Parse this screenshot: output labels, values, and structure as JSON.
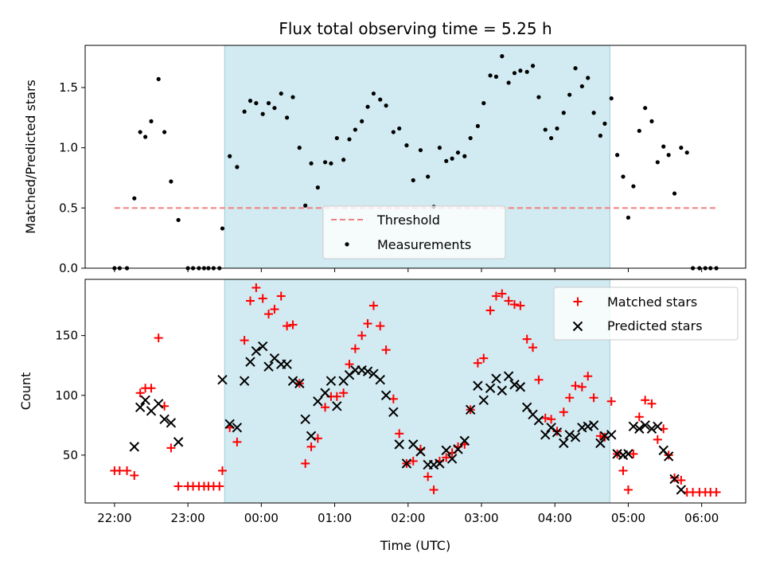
{
  "chart_data": {
    "type": "scatter",
    "title": "Flux total observing time = 5.25 h",
    "xlabel": "Time (UTC)",
    "x_ticks": [
      "22:00",
      "23:00",
      "00:00",
      "01:00",
      "02:00",
      "03:00",
      "04:00",
      "05:00",
      "06:00"
    ],
    "x_range_hours": [
      21.6,
      30.6
    ],
    "highlight_span_hours": [
      23.5,
      28.75
    ],
    "colors": {
      "threshold": "#f08080",
      "span": "#add8e6",
      "measurements": "#000000",
      "matched": "#ff0000",
      "predicted": "#000000"
    },
    "top": {
      "ylabel": "Matched/Predicted stars",
      "ylim": [
        0,
        1.85
      ],
      "y_ticks": [
        "0.0",
        "0.5",
        "1.0",
        "1.5"
      ],
      "threshold": {
        "name": "Threshold",
        "value": 0.5,
        "x_range": [
          22.0,
          30.2
        ]
      },
      "legend": {
        "placement": "lower-center",
        "threshold_label": "Threshold",
        "measurements_label": "Measurements"
      },
      "measurements": {
        "name": "Measurements",
        "x": [
          22.0,
          22.07,
          22.17,
          22.27,
          22.35,
          22.42,
          22.5,
          22.6,
          22.68,
          22.77,
          22.87,
          23.0,
          23.07,
          23.15,
          23.22,
          23.28,
          23.35,
          23.43,
          23.47,
          23.57,
          23.67,
          23.77,
          23.85,
          23.93,
          24.02,
          24.1,
          24.18,
          24.27,
          24.35,
          24.43,
          24.52,
          24.6,
          24.68,
          24.77,
          24.87,
          24.95,
          25.03,
          25.12,
          25.2,
          25.28,
          25.37,
          25.45,
          25.53,
          25.62,
          25.7,
          25.8,
          25.88,
          25.98,
          26.07,
          26.17,
          26.27,
          26.35,
          26.43,
          26.52,
          26.6,
          26.68,
          26.77,
          26.85,
          26.95,
          27.03,
          27.12,
          27.2,
          27.28,
          27.37,
          27.45,
          27.53,
          27.62,
          27.7,
          27.78,
          27.87,
          27.95,
          28.03,
          28.12,
          28.2,
          28.28,
          28.37,
          28.45,
          28.53,
          28.62,
          28.68,
          28.77,
          28.85,
          28.93,
          29.0,
          29.07,
          29.15,
          29.23,
          29.32,
          29.4,
          29.48,
          29.55,
          29.63,
          29.72,
          29.8,
          29.88,
          29.97,
          30.05,
          30.12,
          30.2
        ],
        "y": [
          0.0,
          0.0,
          0.0,
          0.58,
          1.13,
          1.09,
          1.22,
          1.57,
          1.13,
          0.72,
          0.4,
          0.0,
          0.0,
          0.0,
          0.0,
          0.0,
          0.0,
          0.0,
          0.33,
          0.93,
          0.84,
          1.3,
          1.39,
          1.37,
          1.28,
          1.37,
          1.33,
          1.45,
          1.25,
          1.42,
          1.0,
          0.52,
          0.87,
          0.67,
          0.88,
          0.87,
          1.08,
          0.9,
          1.07,
          1.15,
          1.22,
          1.34,
          1.45,
          1.4,
          1.35,
          1.13,
          1.16,
          1.02,
          0.73,
          0.98,
          0.76,
          0.51,
          1.0,
          0.89,
          0.91,
          0.96,
          0.93,
          1.08,
          1.18,
          1.37,
          1.6,
          1.59,
          1.76,
          1.54,
          1.62,
          1.64,
          1.63,
          1.68,
          1.42,
          1.15,
          1.08,
          1.16,
          1.29,
          1.44,
          1.66,
          1.51,
          1.58,
          1.29,
          1.1,
          1.2,
          1.41,
          0.94,
          0.76,
          0.42,
          0.68,
          1.14,
          1.33,
          1.22,
          0.88,
          1.01,
          0.94,
          0.62,
          1.0,
          0.96,
          0.0,
          0.0,
          0.0,
          0.0,
          0.0
        ]
      }
    },
    "bottom": {
      "ylabel": "Count",
      "ylim": [
        10,
        197
      ],
      "y_ticks": [
        "50",
        "100",
        "150"
      ],
      "legend": {
        "placement": "upper-right"
      },
      "series": [
        {
          "name": "Matched stars",
          "marker": "plus",
          "x": [
            22.0,
            22.07,
            22.17,
            22.27,
            22.35,
            22.42,
            22.5,
            22.6,
            22.68,
            22.77,
            22.87,
            23.0,
            23.07,
            23.15,
            23.22,
            23.28,
            23.35,
            23.43,
            23.47,
            23.57,
            23.67,
            23.77,
            23.85,
            23.93,
            24.02,
            24.1,
            24.18,
            24.27,
            24.35,
            24.43,
            24.52,
            24.6,
            24.68,
            24.77,
            24.87,
            24.95,
            25.03,
            25.12,
            25.2,
            25.28,
            25.37,
            25.45,
            25.53,
            25.62,
            25.7,
            25.8,
            25.88,
            25.98,
            26.07,
            26.17,
            26.27,
            26.35,
            26.43,
            26.52,
            26.6,
            26.68,
            26.77,
            26.85,
            26.95,
            27.03,
            27.12,
            27.2,
            27.28,
            27.37,
            27.45,
            27.53,
            27.62,
            27.7,
            27.78,
            27.87,
            27.95,
            28.03,
            28.12,
            28.2,
            28.28,
            28.37,
            28.45,
            28.53,
            28.62,
            28.68,
            28.77,
            28.85,
            28.93,
            29.0,
            29.07,
            29.15,
            29.23,
            29.32,
            29.4,
            29.48,
            29.55,
            29.63,
            29.72,
            29.8,
            29.88,
            29.97,
            30.05,
            30.12,
            30.2
          ],
          "y": [
            37,
            37,
            37,
            33,
            102,
            106,
            106,
            148,
            91,
            56,
            24,
            24,
            24,
            24,
            24,
            24,
            24,
            24,
            37,
            73,
            61,
            146,
            179,
            190,
            181,
            168,
            172,
            183,
            158,
            159,
            110,
            43,
            57,
            64,
            90,
            99,
            99,
            102,
            126,
            139,
            150,
            160,
            175,
            158,
            138,
            97,
            68,
            43,
            45,
            55,
            32,
            21,
            45,
            48,
            52,
            57,
            59,
            88,
            127,
            131,
            171,
            183,
            185,
            179,
            176,
            175,
            147,
            140,
            113,
            81,
            80,
            70,
            86,
            98,
            108,
            107,
            116,
            98,
            66,
            65,
            95,
            51,
            37,
            21,
            51,
            82,
            96,
            93,
            63,
            72,
            50,
            31,
            29,
            19,
            19,
            19,
            19,
            19,
            19
          ]
        },
        {
          "name": "Predicted stars",
          "marker": "x",
          "x": [
            22.27,
            22.35,
            22.42,
            22.5,
            22.6,
            22.68,
            22.77,
            22.87,
            23.47,
            23.57,
            23.67,
            23.77,
            23.85,
            23.93,
            24.02,
            24.1,
            24.18,
            24.27,
            24.35,
            24.43,
            24.52,
            24.6,
            24.68,
            24.77,
            24.87,
            24.95,
            25.03,
            25.12,
            25.2,
            25.28,
            25.37,
            25.45,
            25.53,
            25.62,
            25.7,
            25.8,
            25.88,
            25.98,
            26.07,
            26.17,
            26.27,
            26.35,
            26.43,
            26.52,
            26.6,
            26.68,
            26.77,
            26.85,
            26.95,
            27.03,
            27.12,
            27.2,
            27.28,
            27.37,
            27.45,
            27.53,
            27.62,
            27.7,
            27.78,
            27.87,
            27.95,
            28.03,
            28.12,
            28.2,
            28.28,
            28.37,
            28.45,
            28.53,
            28.62,
            28.68,
            28.77,
            28.85,
            28.93,
            29.0,
            29.07,
            29.15,
            29.23,
            29.32,
            29.4,
            29.48,
            29.55,
            29.63,
            29.72
          ],
          "y": [
            57,
            90,
            96,
            87,
            93,
            80,
            77,
            61,
            113,
            76,
            73,
            112,
            128,
            137,
            141,
            124,
            131,
            126,
            126,
            112,
            110,
            80,
            66,
            95,
            102,
            112,
            91,
            112,
            117,
            121,
            121,
            120,
            118,
            113,
            100,
            86,
            59,
            43,
            59,
            53,
            42,
            42,
            43,
            54,
            47,
            55,
            62,
            88,
            108,
            96,
            106,
            114,
            104,
            116,
            109,
            107,
            90,
            84,
            79,
            67,
            73,
            69,
            60,
            67,
            65,
            73,
            74,
            75,
            60,
            66,
            67,
            51,
            50,
            51,
            74,
            72,
            75,
            72,
            74,
            54,
            49,
            30,
            21
          ]
        }
      ]
    }
  }
}
